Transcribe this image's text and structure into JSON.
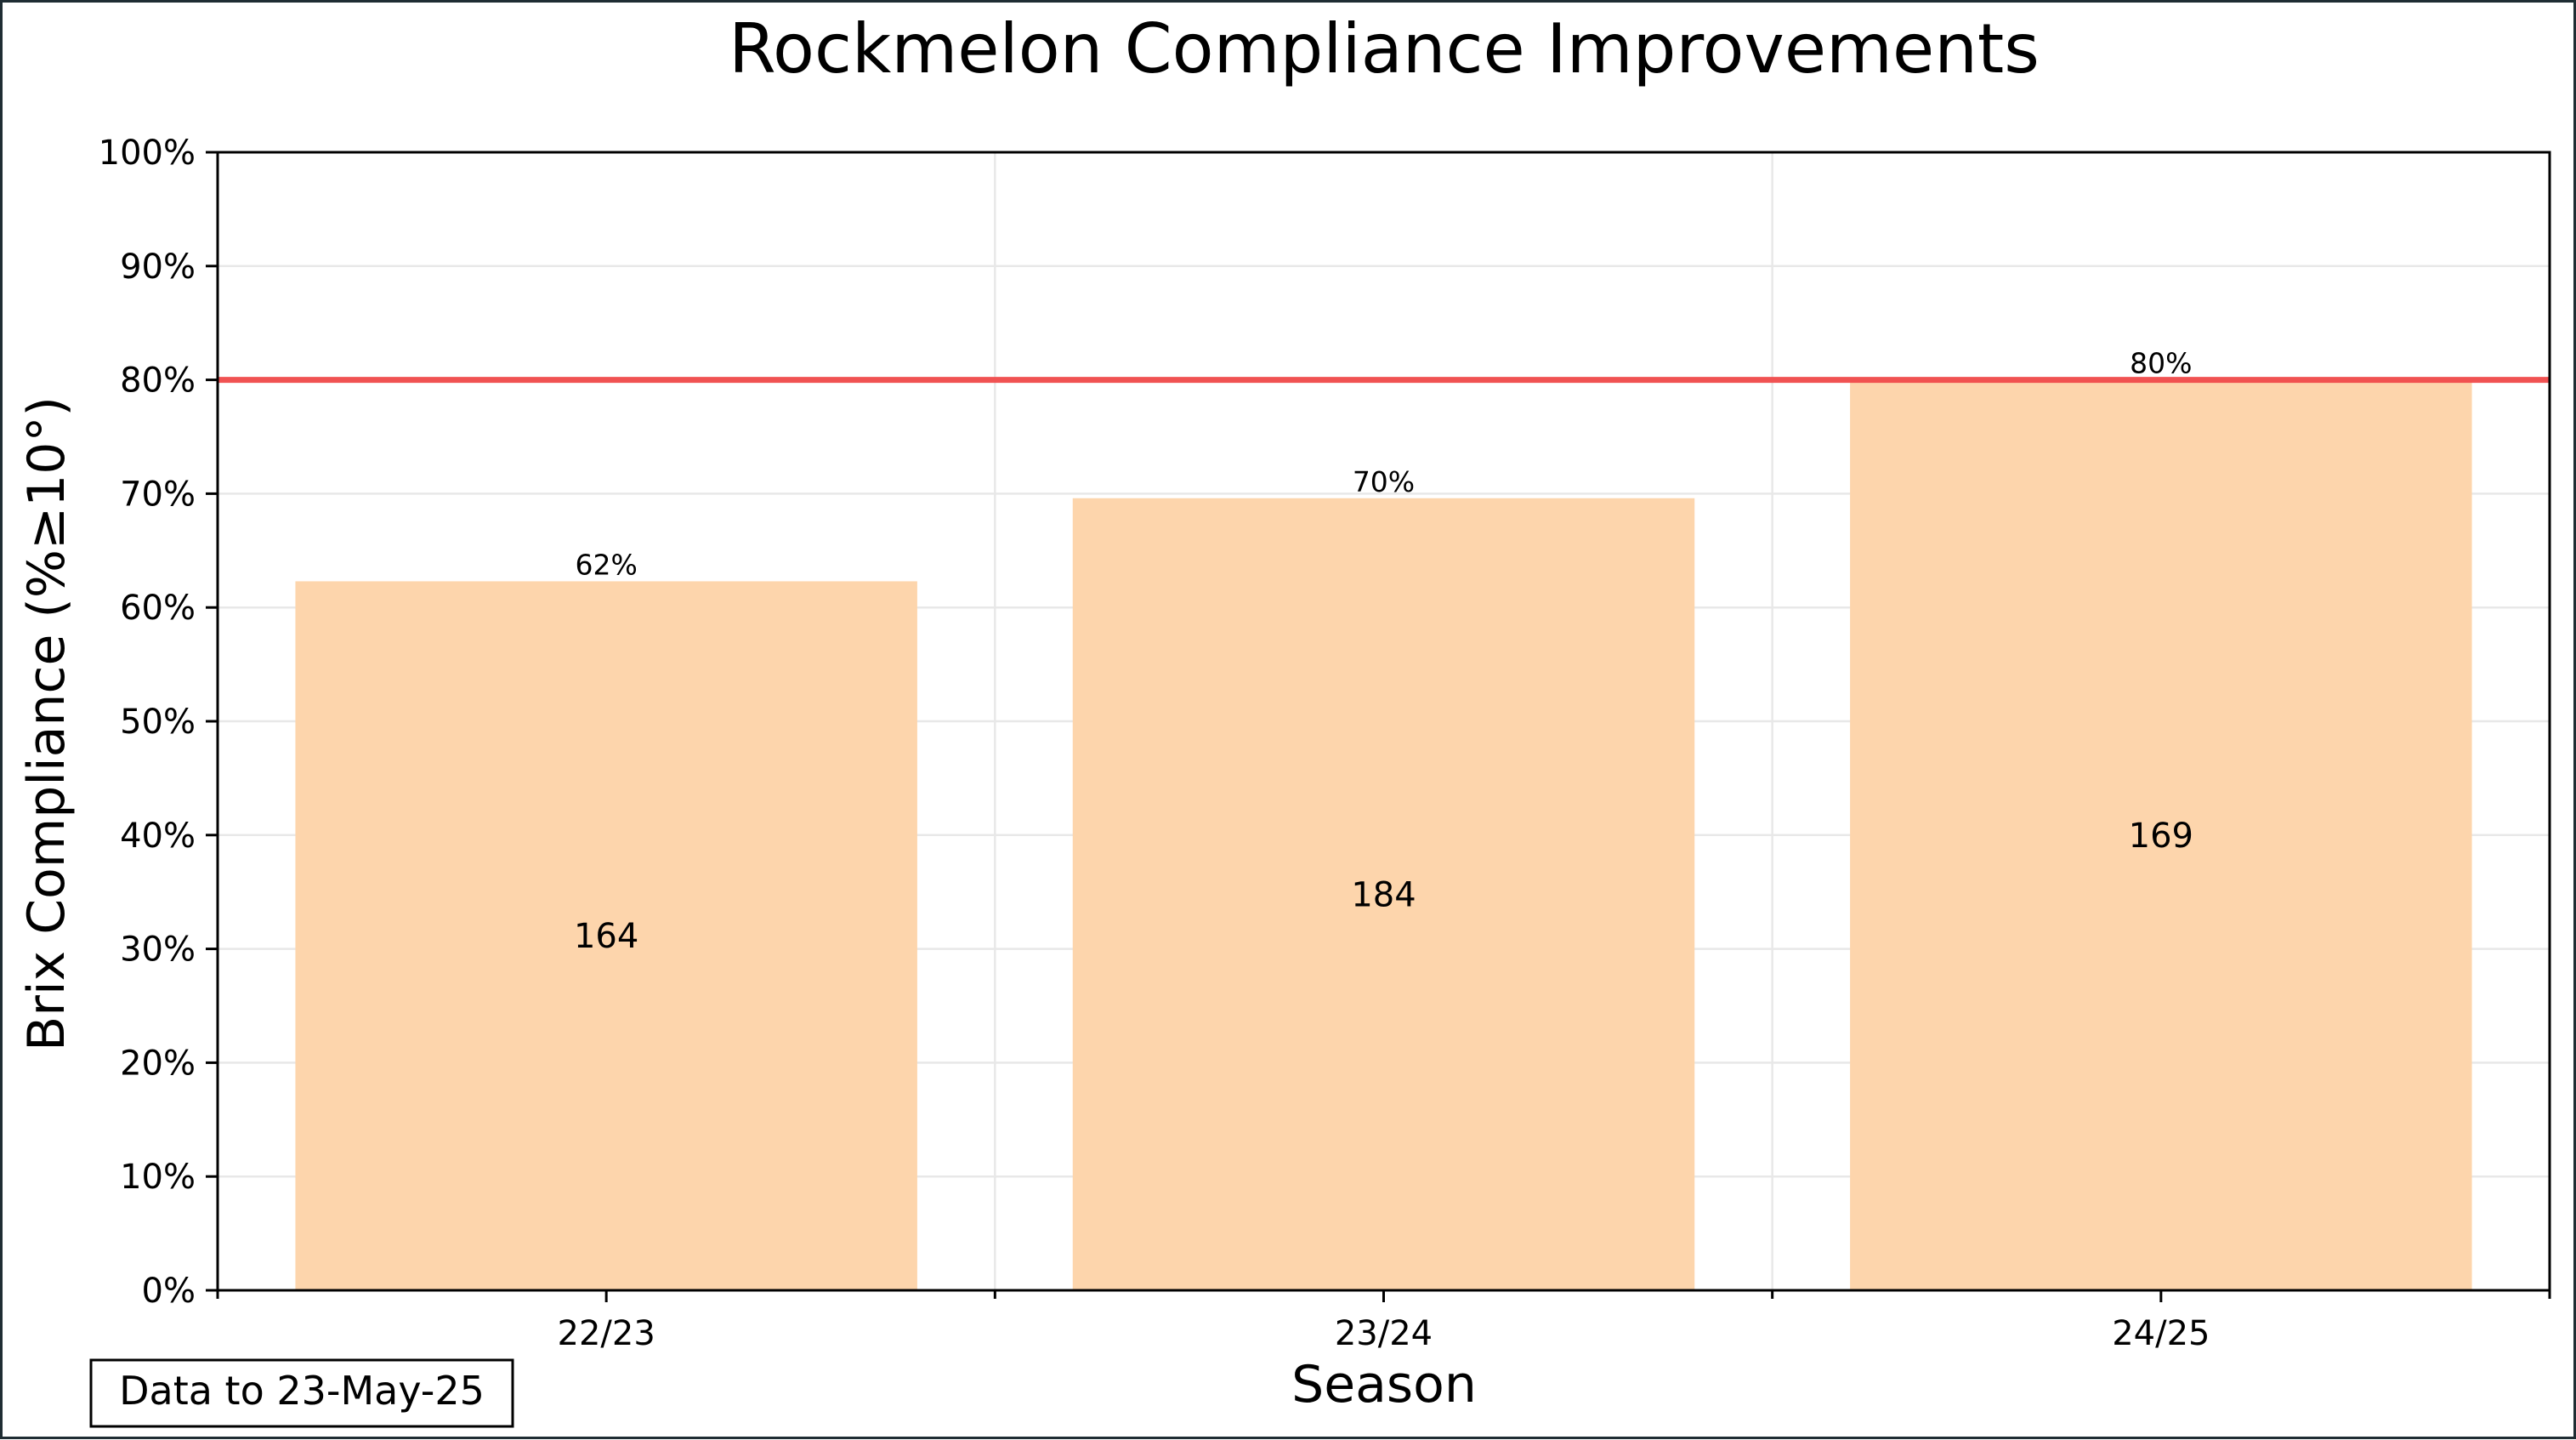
{
  "chart_data": {
    "type": "bar",
    "title": "Rockmelon Compliance Improvements",
    "xlabel": "Season",
    "ylabel": "Brix Compliance (%≥10°)",
    "categories": [
      "22/23",
      "23/24",
      "24/25"
    ],
    "values": [
      62.3,
      69.6,
      80.0
    ],
    "value_labels": [
      "62%",
      "70%",
      "80%"
    ],
    "counts": [
      "164",
      "184",
      "169"
    ],
    "ylim": [
      0,
      100
    ],
    "yticks": [
      0,
      10,
      20,
      30,
      40,
      50,
      60,
      70,
      80,
      90,
      100
    ],
    "ytick_labels": [
      "0%",
      "10%",
      "20%",
      "30%",
      "40%",
      "50%",
      "60%",
      "70%",
      "80%",
      "90%",
      "100%"
    ],
    "target_line": 80,
    "grid": true,
    "bar_color": "#fdd5ac",
    "target_color": "#f04a4a",
    "note": "Data to 23-May-25"
  }
}
